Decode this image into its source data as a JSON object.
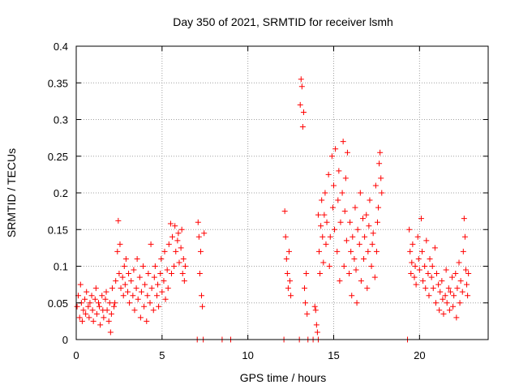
{
  "chart_data": {
    "type": "scatter",
    "title": "Day 350 of 2021, SRMTID for receiver lsmh",
    "xlabel": "GPS time / hours",
    "ylabel": "SRMTID / TECUs",
    "xlim": [
      0,
      24
    ],
    "ylim": [
      0,
      0.4
    ],
    "xticks": [
      0,
      5,
      10,
      15,
      20
    ],
    "xtick_labels": [
      "0",
      "5",
      "10",
      "15",
      "20"
    ],
    "yticks": [
      0,
      0.05,
      0.1,
      0.15,
      0.2,
      0.25,
      0.3,
      0.35,
      0.4
    ],
    "ytick_labels": [
      "0",
      "0.05",
      "0.1",
      "0.15",
      "0.2",
      "0.25",
      "0.3",
      "0.35",
      "0.4"
    ],
    "grid": true,
    "marker": "+",
    "color": "#ff0000",
    "series": [
      {
        "name": "SRMTID",
        "points": [
          [
            0.05,
            0.045
          ],
          [
            0.12,
            0.06
          ],
          [
            0.2,
            0.03
          ],
          [
            0.25,
            0.075
          ],
          [
            0.3,
            0.05
          ],
          [
            0.35,
            0.025
          ],
          [
            0.42,
            0.04
          ],
          [
            0.5,
            0.055
          ],
          [
            0.55,
            0.035
          ],
          [
            0.6,
            0.065
          ],
          [
            0.7,
            0.045
          ],
          [
            0.75,
            0.03
          ],
          [
            0.8,
            0.05
          ],
          [
            0.9,
            0.06
          ],
          [
            0.95,
            0.04
          ],
          [
            1.0,
            0.025
          ],
          [
            1.1,
            0.055
          ],
          [
            1.15,
            0.07
          ],
          [
            1.2,
            0.035
          ],
          [
            1.3,
            0.05
          ],
          [
            1.35,
            0.045
          ],
          [
            1.4,
            0.02
          ],
          [
            1.5,
            0.06
          ],
          [
            1.55,
            0.04
          ],
          [
            1.6,
            0.03
          ],
          [
            1.7,
            0.055
          ],
          [
            1.75,
            0.065
          ],
          [
            1.8,
            0.04
          ],
          [
            1.9,
            0.025
          ],
          [
            1.95,
            0.05
          ],
          [
            2.0,
            0.01
          ],
          [
            2.05,
            0.035
          ],
          [
            2.1,
            0.07
          ],
          [
            2.2,
            0.045
          ],
          [
            2.25,
            0.05
          ],
          [
            2.3,
            0.08
          ],
          [
            2.4,
            0.12
          ],
          [
            2.45,
            0.162
          ],
          [
            2.5,
            0.09
          ],
          [
            2.55,
            0.13
          ],
          [
            2.6,
            0.07
          ],
          [
            2.7,
            0.085
          ],
          [
            2.75,
            0.06
          ],
          [
            2.8,
            0.1
          ],
          [
            2.85,
            0.075
          ],
          [
            2.9,
            0.11
          ],
          [
            3.0,
            0.065
          ],
          [
            3.05,
            0.09
          ],
          [
            3.1,
            0.05
          ],
          [
            3.2,
            0.08
          ],
          [
            3.3,
            0.06
          ],
          [
            3.35,
            0.095
          ],
          [
            3.4,
            0.04
          ],
          [
            3.5,
            0.07
          ],
          [
            3.55,
            0.11
          ],
          [
            3.6,
            0.055
          ],
          [
            3.7,
            0.085
          ],
          [
            3.75,
            0.03
          ],
          [
            3.8,
            0.065
          ],
          [
            3.9,
            0.1
          ],
          [
            3.95,
            0.045
          ],
          [
            4.0,
            0.075
          ],
          [
            4.1,
            0.025
          ],
          [
            4.15,
            0.06
          ],
          [
            4.2,
            0.09
          ],
          [
            4.3,
            0.05
          ],
          [
            4.35,
            0.13
          ],
          [
            4.4,
            0.07
          ],
          [
            4.5,
            0.04
          ],
          [
            4.55,
            0.085
          ],
          [
            4.6,
            0.1
          ],
          [
            4.7,
            0.06
          ],
          [
            4.75,
            0.075
          ],
          [
            4.8,
            0.045
          ],
          [
            4.9,
            0.09
          ],
          [
            4.95,
            0.11
          ],
          [
            5.0,
            0.065
          ],
          [
            5.1,
            0.08
          ],
          [
            5.15,
            0.12
          ],
          [
            5.2,
            0.055
          ],
          [
            5.3,
            0.095
          ],
          [
            5.35,
            0.07
          ],
          [
            5.4,
            0.13
          ],
          [
            5.5,
            0.158
          ],
          [
            5.55,
            0.09
          ],
          [
            5.6,
            0.14
          ],
          [
            5.7,
            0.1
          ],
          [
            5.75,
            0.155
          ],
          [
            5.8,
            0.12
          ],
          [
            5.9,
            0.135
          ],
          [
            5.95,
            0.145
          ],
          [
            6.0,
            0.105
          ],
          [
            6.1,
            0.125
          ],
          [
            6.15,
            0.15
          ],
          [
            6.2,
            0.09
          ],
          [
            6.25,
            0.11
          ],
          [
            6.3,
            0.08
          ],
          [
            6.35,
            0.1
          ],
          [
            7.05,
            0.0
          ],
          [
            7.1,
            0.16
          ],
          [
            7.15,
            0.14
          ],
          [
            7.2,
            0.09
          ],
          [
            7.25,
            0.12
          ],
          [
            7.3,
            0.06
          ],
          [
            7.35,
            0.045
          ],
          [
            7.4,
            0.0
          ],
          [
            7.45,
            0.145
          ],
          [
            8.5,
            0.0
          ],
          [
            9.0,
            0.0
          ],
          [
            12.1,
            0.0
          ],
          [
            12.15,
            0.175
          ],
          [
            12.2,
            0.14
          ],
          [
            12.25,
            0.11
          ],
          [
            12.3,
            0.09
          ],
          [
            12.35,
            0.07
          ],
          [
            12.4,
            0.12
          ],
          [
            12.45,
            0.08
          ],
          [
            12.5,
            0.06
          ],
          [
            13.0,
            0.0
          ],
          [
            13.05,
            0.32
          ],
          [
            13.1,
            0.355
          ],
          [
            13.15,
            0.345
          ],
          [
            13.2,
            0.29
          ],
          [
            13.25,
            0.31
          ],
          [
            13.3,
            0.07
          ],
          [
            13.35,
            0.05
          ],
          [
            13.4,
            0.09
          ],
          [
            13.45,
            0.035
          ],
          [
            13.5,
            0.0
          ],
          [
            13.8,
            0.0
          ],
          [
            13.9,
            0.045
          ],
          [
            13.95,
            0.04
          ],
          [
            14.0,
            0.02
          ],
          [
            14.05,
            0.01
          ],
          [
            14.1,
            0.0
          ],
          [
            14.1,
            0.17
          ],
          [
            14.15,
            0.12
          ],
          [
            14.2,
            0.09
          ],
          [
            14.25,
            0.155
          ],
          [
            14.3,
            0.19
          ],
          [
            14.35,
            0.14
          ],
          [
            14.4,
            0.105
          ],
          [
            14.45,
            0.17
          ],
          [
            14.5,
            0.2
          ],
          [
            14.55,
            0.13
          ],
          [
            14.6,
            0.16
          ],
          [
            14.7,
            0.225
          ],
          [
            14.75,
            0.1
          ],
          [
            14.8,
            0.14
          ],
          [
            14.9,
            0.25
          ],
          [
            14.95,
            0.18
          ],
          [
            15.0,
            0.21
          ],
          [
            15.05,
            0.15
          ],
          [
            15.1,
            0.26
          ],
          [
            15.2,
            0.12
          ],
          [
            15.25,
            0.19
          ],
          [
            15.3,
            0.23
          ],
          [
            15.35,
            0.08
          ],
          [
            15.4,
            0.16
          ],
          [
            15.5,
            0.2
          ],
          [
            15.55,
            0.27
          ],
          [
            15.6,
            0.1
          ],
          [
            15.65,
            0.175
          ],
          [
            15.7,
            0.22
          ],
          [
            15.75,
            0.135
          ],
          [
            15.8,
            0.255
          ],
          [
            15.9,
            0.09
          ],
          [
            15.95,
            0.16
          ],
          [
            16.0,
            0.12
          ],
          [
            16.05,
            0.06
          ],
          [
            16.1,
            0.14
          ],
          [
            16.2,
            0.11
          ],
          [
            16.25,
            0.18
          ],
          [
            16.3,
            0.095
          ],
          [
            16.35,
            0.05
          ],
          [
            16.4,
            0.15
          ],
          [
            16.5,
            0.13
          ],
          [
            16.55,
            0.2
          ],
          [
            16.6,
            0.08
          ],
          [
            16.7,
            0.165
          ],
          [
            16.75,
            0.11
          ],
          [
            16.8,
            0.14
          ],
          [
            16.9,
            0.17
          ],
          [
            16.95,
            0.07
          ],
          [
            17.0,
            0.12
          ],
          [
            17.05,
            0.155
          ],
          [
            17.1,
            0.19
          ],
          [
            17.2,
            0.1
          ],
          [
            17.25,
            0.13
          ],
          [
            17.3,
            0.145
          ],
          [
            17.4,
            0.085
          ],
          [
            17.45,
            0.21
          ],
          [
            17.5,
            0.12
          ],
          [
            17.55,
            0.16
          ],
          [
            17.6,
            0.18
          ],
          [
            17.65,
            0.24
          ],
          [
            17.7,
            0.255
          ],
          [
            17.75,
            0.22
          ],
          [
            17.8,
            0.2
          ],
          [
            19.3,
            0.0
          ],
          [
            19.4,
            0.15
          ],
          [
            19.45,
            0.12
          ],
          [
            19.5,
            0.09
          ],
          [
            19.55,
            0.105
          ],
          [
            19.6,
            0.13
          ],
          [
            19.7,
            0.085
          ],
          [
            19.75,
            0.1
          ],
          [
            19.8,
            0.075
          ],
          [
            19.9,
            0.14
          ],
          [
            19.95,
            0.11
          ],
          [
            20.0,
            0.095
          ],
          [
            20.1,
            0.165
          ],
          [
            20.15,
            0.12
          ],
          [
            20.2,
            0.08
          ],
          [
            20.3,
            0.1
          ],
          [
            20.35,
            0.07
          ],
          [
            20.4,
            0.135
          ],
          [
            20.5,
            0.09
          ],
          [
            20.55,
            0.06
          ],
          [
            20.6,
            0.11
          ],
          [
            20.7,
            0.085
          ],
          [
            20.75,
            0.1
          ],
          [
            20.8,
            0.07
          ],
          [
            20.9,
            0.125
          ],
          [
            20.95,
            0.05
          ],
          [
            21.0,
            0.09
          ],
          [
            21.1,
            0.075
          ],
          [
            21.15,
            0.04
          ],
          [
            21.2,
            0.065
          ],
          [
            21.3,
            0.08
          ],
          [
            21.35,
            0.055
          ],
          [
            21.4,
            0.035
          ],
          [
            21.5,
            0.06
          ],
          [
            21.55,
            0.095
          ],
          [
            21.6,
            0.05
          ],
          [
            21.7,
            0.07
          ],
          [
            21.75,
            0.04
          ],
          [
            21.8,
            0.065
          ],
          [
            21.9,
            0.085
          ],
          [
            21.95,
            0.045
          ],
          [
            22.0,
            0.06
          ],
          [
            22.1,
            0.09
          ],
          [
            22.15,
            0.03
          ],
          [
            22.2,
            0.07
          ],
          [
            22.3,
            0.105
          ],
          [
            22.35,
            0.05
          ],
          [
            22.4,
            0.08
          ],
          [
            22.5,
            0.065
          ],
          [
            22.55,
            0.12
          ],
          [
            22.6,
            0.165
          ],
          [
            22.65,
            0.14
          ],
          [
            22.7,
            0.095
          ],
          [
            22.75,
            0.075
          ],
          [
            22.8,
            0.06
          ],
          [
            22.85,
            0.09
          ]
        ]
      }
    ]
  }
}
